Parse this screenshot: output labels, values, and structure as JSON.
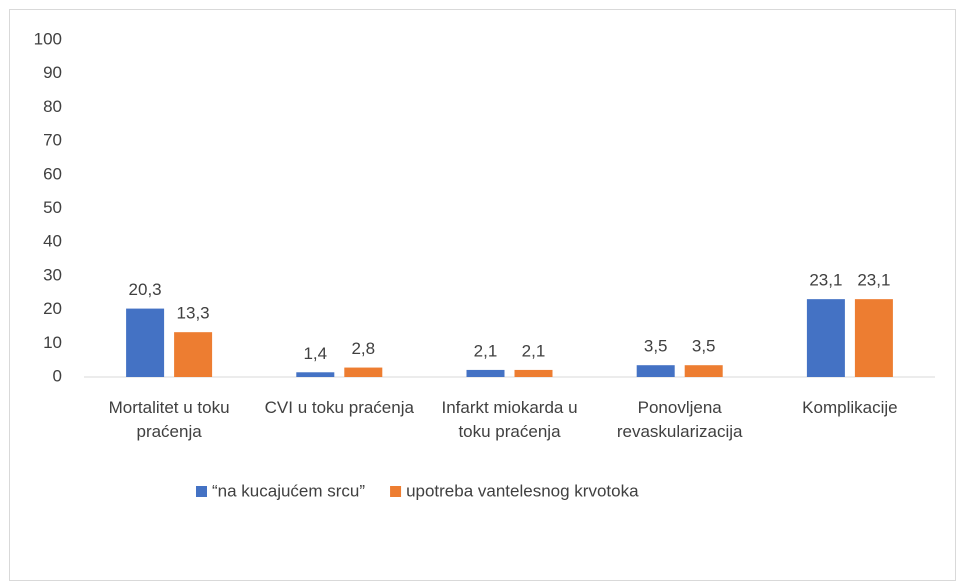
{
  "chart_data": {
    "type": "bar",
    "categories": [
      "Mortalitet u toku praćenja",
      "CVI u toku praćenja",
      "Infarkt miokarda u toku praćenja",
      "Ponovljena revaskularizacija",
      "Komplikacije"
    ],
    "series": [
      {
        "name": "“na kucajućem srcu”",
        "color": "#4472c4",
        "values": [
          20.3,
          1.4,
          2.1,
          3.5,
          23.1
        ],
        "value_labels": [
          "20,3",
          "1,4",
          "2,1",
          "3,5",
          "23,1"
        ]
      },
      {
        "name": "upotreba vantelesnog krvotoka",
        "color": "#ed7d31",
        "values": [
          13.3,
          2.8,
          2.1,
          3.5,
          23.1
        ],
        "value_labels": [
          "13,3",
          "2,8",
          "2,1",
          "3,5",
          "23,1"
        ]
      }
    ],
    "ylim": [
      0,
      100
    ],
    "yticks": [
      0,
      10,
      20,
      30,
      40,
      50,
      60,
      70,
      80,
      90,
      100
    ],
    "grid": false,
    "legend": "bottom"
  }
}
